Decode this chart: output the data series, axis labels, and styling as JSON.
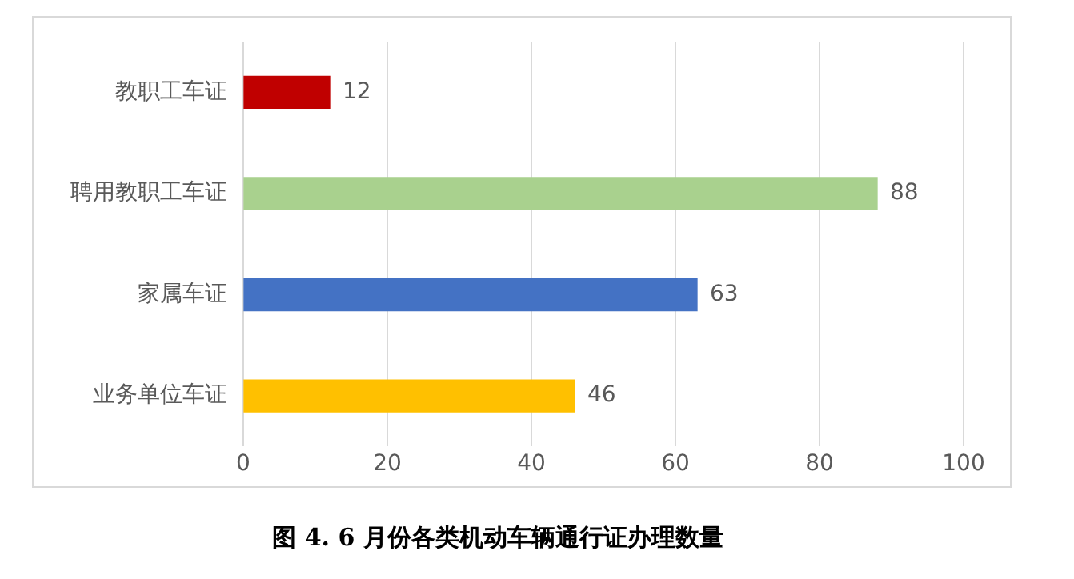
{
  "chart_data": {
    "type": "bar",
    "orientation": "horizontal",
    "title": "图 4. 6 月份各类机动车辆通行证办理数量",
    "categories": [
      "教职工车证",
      "聘用教职工车证",
      "家属车证",
      "业务单位车证"
    ],
    "values": [
      12,
      88,
      63,
      46
    ],
    "colors": [
      "#c00000",
      "#a9d18e",
      "#4472c4",
      "#ffc000"
    ],
    "xlim": [
      0,
      100
    ],
    "xticks": [
      0,
      20,
      40,
      60,
      80,
      100
    ],
    "grid": "x",
    "data_labels": true,
    "legend": false
  }
}
